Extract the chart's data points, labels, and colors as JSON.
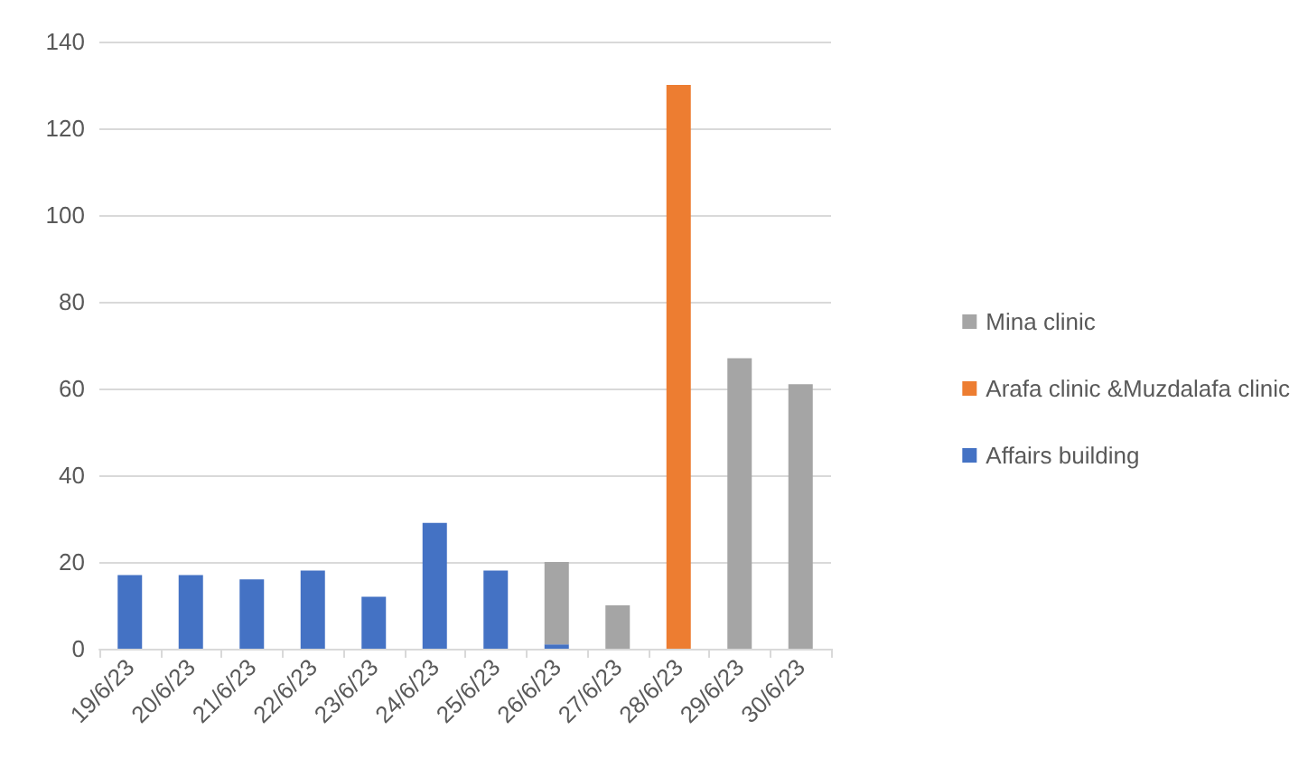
{
  "chart_data": {
    "type": "bar",
    "stacked": true,
    "categories": [
      "19/6/23",
      "20/6/23",
      "21/6/23",
      "22/6/23",
      "23/6/23",
      "24/6/23",
      "25/6/23",
      "26/6/23",
      "27/6/23",
      "28/6/23",
      "29/6/23",
      "30/6/23"
    ],
    "series": [
      {
        "name": "Affairs building",
        "color": "#4472c4",
        "values": [
          17,
          17,
          16,
          18,
          12,
          29,
          18,
          1,
          null,
          null,
          null,
          null
        ]
      },
      {
        "name": "Arafa clinic &Muzdalafa clinic",
        "color": "#ed7d31",
        "values": [
          null,
          null,
          null,
          null,
          null,
          null,
          null,
          null,
          null,
          130,
          null,
          null
        ]
      },
      {
        "name": "Mina clinic",
        "color": "#a5a5a5",
        "values": [
          null,
          null,
          null,
          null,
          null,
          null,
          null,
          19,
          10,
          null,
          67,
          61
        ]
      }
    ],
    "ylim": [
      0,
      140
    ],
    "yticks": [
      0,
      20,
      40,
      60,
      80,
      100,
      120,
      140
    ],
    "grid": "y",
    "legend": "right"
  }
}
